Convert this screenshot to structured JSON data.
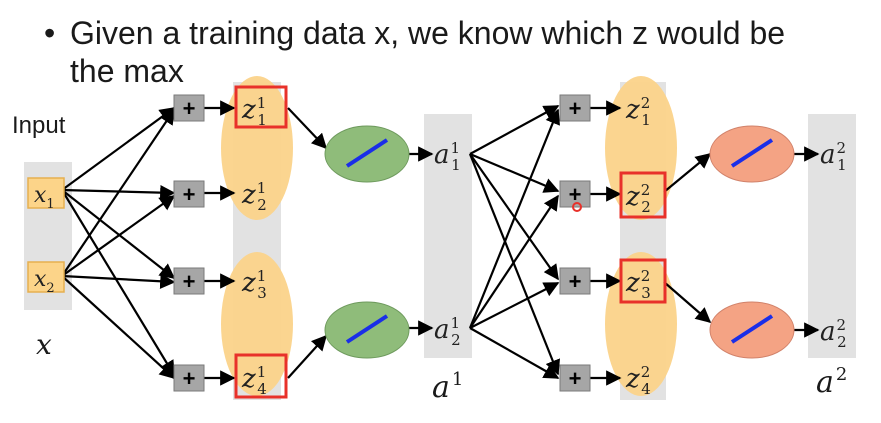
{
  "bullet": {
    "marker": "•",
    "line1": "Given a training data x, we know which z would be",
    "line2": "the max"
  },
  "labels": {
    "input": "Input",
    "x_vector": "x",
    "a1_vector": "a",
    "a1_vector_sup": "1",
    "a2_vector": "a",
    "a2_vector_sup": "2"
  },
  "inputs": [
    {
      "base": "x",
      "sub": "1"
    },
    {
      "base": "x",
      "sub": "2"
    }
  ],
  "plus_symbol": "+",
  "layer1": {
    "z": [
      {
        "base": "z",
        "sup": "1",
        "sub": "1",
        "highlighted": true
      },
      {
        "base": "z",
        "sup": "1",
        "sub": "2",
        "highlighted": false
      },
      {
        "base": "z",
        "sup": "1",
        "sub": "3",
        "highlighted": false
      },
      {
        "base": "z",
        "sup": "1",
        "sub": "4",
        "highlighted": true
      }
    ],
    "a": [
      {
        "base": "a",
        "sup": "1",
        "sub": "1"
      },
      {
        "base": "a",
        "sup": "1",
        "sub": "2"
      }
    ]
  },
  "layer2": {
    "z": [
      {
        "base": "z",
        "sup": "2",
        "sub": "1",
        "highlighted": false
      },
      {
        "base": "z",
        "sup": "2",
        "sub": "2",
        "highlighted": true
      },
      {
        "base": "z",
        "sup": "2",
        "sub": "3",
        "highlighted": true
      },
      {
        "base": "z",
        "sup": "2",
        "sub": "4",
        "highlighted": false
      }
    ],
    "a": [
      {
        "base": "a",
        "sup": "2",
        "sub": "1"
      },
      {
        "base": "a",
        "sup": "2",
        "sub": "2"
      }
    ]
  },
  "colors": {
    "orange_ellipse": "#fbd38a",
    "green_circle": "#8fbc7a",
    "salmon_circle": "#f4a384",
    "gray_panel": "#e2e2e2",
    "input_box": "#fcd489",
    "highlight_red": "#e8312a",
    "plus_box": "#a6a6a6",
    "line_blue": "#1a2ee8"
  }
}
